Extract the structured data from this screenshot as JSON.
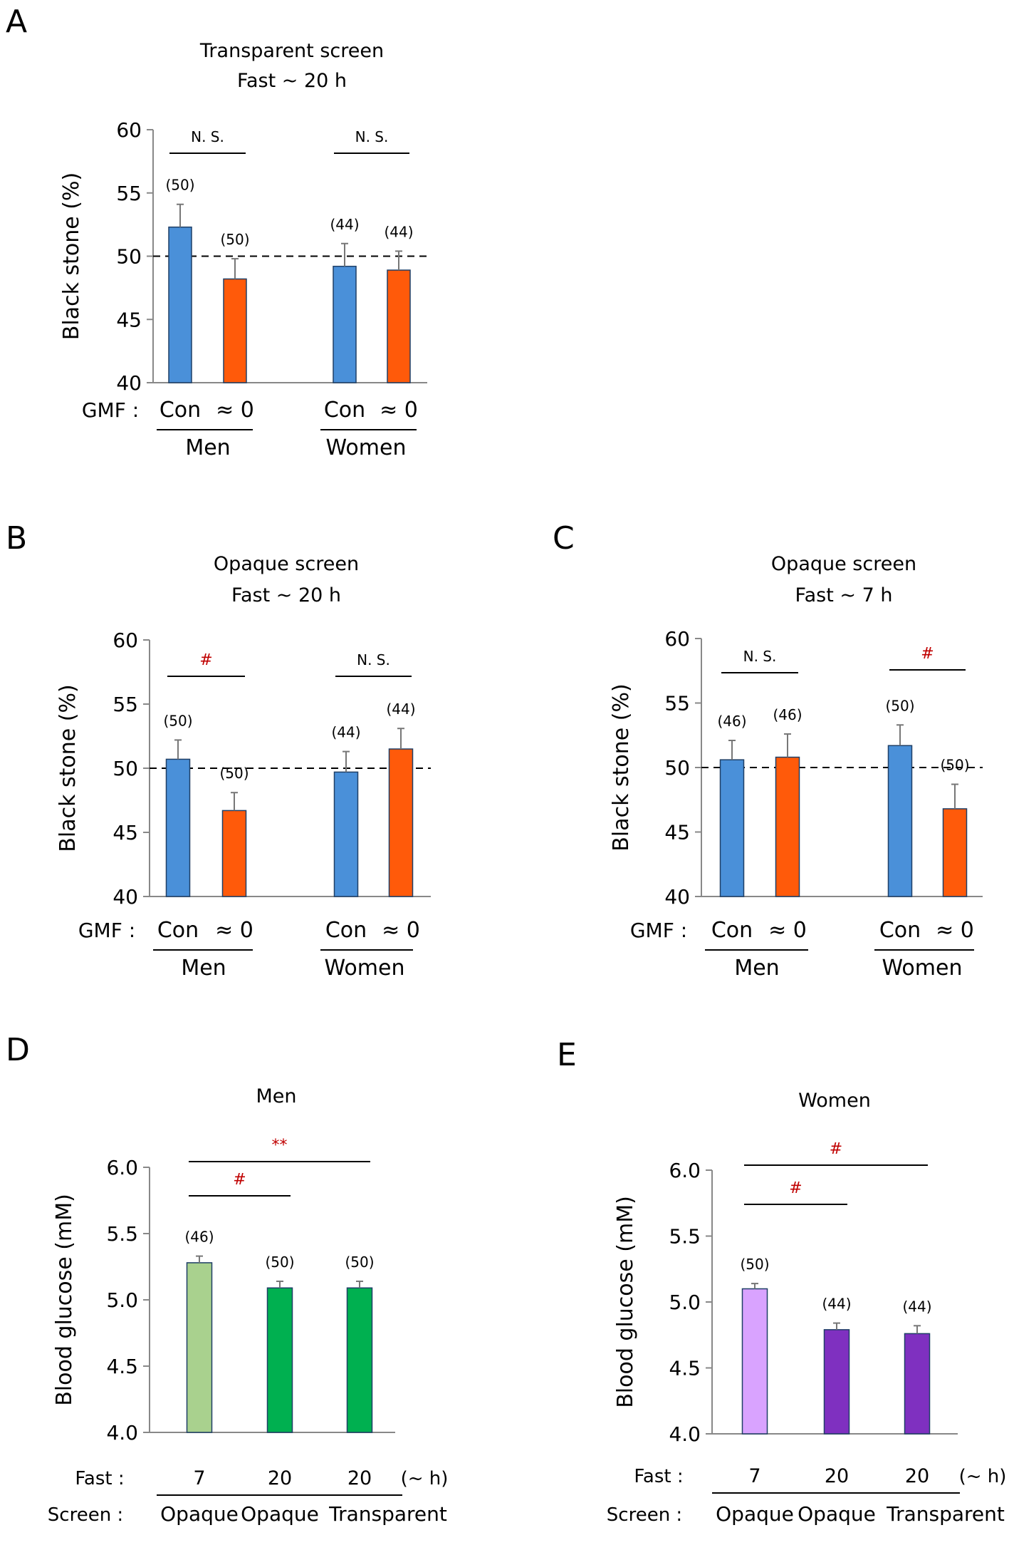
{
  "colors": {
    "con": "#4a90d9",
    "gmf0": "#ff5a0a",
    "men7": "#a9d18e",
    "menFast": "#00b050",
    "women7": "#d9a3ff",
    "womenFast": "#7f30c0",
    "sig": "#c00000"
  },
  "chart_data": [
    {
      "id": "A",
      "type": "bar",
      "panel_label": "A",
      "title_lines": [
        "Transparent screen",
        "Fast ~ 20 h"
      ],
      "ylabel": "Black stone (%)",
      "ylim": [
        40,
        60
      ],
      "yticks": [
        40,
        45,
        50,
        55,
        60
      ],
      "reference_line": 50,
      "row_label": "GMF :",
      "categories": [
        "Con",
        "≈ 0",
        "Con",
        "≈ 0"
      ],
      "groups": [
        "Men",
        "Women"
      ],
      "values": [
        52.3,
        48.2,
        49.2,
        48.9
      ],
      "errors": [
        1.8,
        1.6,
        1.8,
        1.5
      ],
      "n_labels": [
        "(50)",
        "(50)",
        "(44)",
        "(44)"
      ],
      "bar_colors": [
        "con",
        "gmf0",
        "con",
        "gmf0"
      ],
      "significance": [
        {
          "from": 0,
          "to": 1,
          "label": "N. S.",
          "y": 60,
          "red": false
        },
        {
          "from": 2,
          "to": 3,
          "label": "N. S.",
          "y": 60,
          "red": false
        }
      ]
    },
    {
      "id": "B",
      "type": "bar",
      "panel_label": "B",
      "title_lines": [
        "Opaque screen",
        "Fast ~ 20 h"
      ],
      "ylabel": "Black stone (%)",
      "ylim": [
        40,
        60
      ],
      "yticks": [
        40,
        45,
        50,
        55,
        60
      ],
      "reference_line": 50,
      "row_label": "GMF :",
      "categories": [
        "Con",
        "≈ 0",
        "Con",
        "≈ 0"
      ],
      "groups": [
        "Men",
        "Women"
      ],
      "values": [
        50.7,
        46.7,
        49.7,
        51.5
      ],
      "errors": [
        1.5,
        1.4,
        1.6,
        1.6
      ],
      "n_labels": [
        "(50)",
        "(50)",
        "(44)",
        "(44)"
      ],
      "bar_colors": [
        "con",
        "gmf0",
        "con",
        "gmf0"
      ],
      "significance": [
        {
          "from": 0,
          "to": 1,
          "label": "#",
          "y": 60,
          "red": true
        },
        {
          "from": 2,
          "to": 3,
          "label": "N. S.",
          "y": 60,
          "red": false
        }
      ]
    },
    {
      "id": "C",
      "type": "bar",
      "panel_label": "C",
      "title_lines": [
        "Opaque screen",
        "Fast ~ 7 h"
      ],
      "ylabel": "Black stone (%)",
      "ylim": [
        40,
        60
      ],
      "yticks": [
        40,
        45,
        50,
        55,
        60
      ],
      "reference_line": 50,
      "row_label": "GMF :",
      "categories": [
        "Con",
        "≈ 0",
        "Con",
        "≈ 0"
      ],
      "groups": [
        "Men",
        "Women"
      ],
      "values": [
        50.6,
        50.8,
        51.7,
        46.8
      ],
      "errors": [
        1.5,
        1.8,
        1.6,
        1.9
      ],
      "n_labels": [
        "(46)",
        "(46)",
        "(50)",
        "(50)"
      ],
      "bar_colors": [
        "con",
        "gmf0",
        "con",
        "gmf0"
      ],
      "significance": [
        {
          "from": 0,
          "to": 1,
          "label": "N. S.",
          "y": 60,
          "red": false
        },
        {
          "from": 2,
          "to": 3,
          "label": "#",
          "y": 60,
          "red": true
        }
      ]
    },
    {
      "id": "D",
      "type": "bar",
      "panel_label": "D",
      "title_lines": [
        "Men"
      ],
      "ylabel": "Blood glucose (mM)",
      "ylim": [
        4.0,
        6.0
      ],
      "yticks": [
        4.0,
        4.5,
        5.0,
        5.5,
        6.0
      ],
      "row1_label": "Fast :",
      "row1_values": [
        "7",
        "20",
        "20"
      ],
      "row1_unit": "(~ h)",
      "row2_label": "Screen :",
      "row2_values": [
        "Opaque",
        "Opaque",
        "Transparent"
      ],
      "values": [
        5.28,
        5.09,
        5.09
      ],
      "errors": [
        0.05,
        0.05,
        0.05
      ],
      "n_labels": [
        "(46)",
        "(50)",
        "(50)"
      ],
      "bar_colors": [
        "men7",
        "menFast",
        "menFast"
      ],
      "significance": [
        {
          "from": 0,
          "to": 1,
          "label": "#",
          "y": 5.77,
          "red": true
        },
        {
          "from": 0,
          "to": 2,
          "label": "**",
          "y": 6.11,
          "red": true
        }
      ]
    },
    {
      "id": "E",
      "type": "bar",
      "panel_label": "E",
      "title_lines": [
        "Women"
      ],
      "ylabel": "Blood glucose (mM)",
      "ylim": [
        4.0,
        6.0
      ],
      "yticks": [
        4.0,
        4.5,
        5.0,
        5.5,
        6.0
      ],
      "row1_label": "Fast :",
      "row1_values": [
        "7",
        "20",
        "20"
      ],
      "row1_unit": "(~ h)",
      "row2_label": "Screen :",
      "row2_values": [
        "Opaque",
        "Opaque",
        "Transparent"
      ],
      "values": [
        5.1,
        4.79,
        4.76
      ],
      "errors": [
        0.04,
        0.05,
        0.06
      ],
      "n_labels": [
        "(50)",
        "(44)",
        "(44)"
      ],
      "bar_colors": [
        "women7",
        "womenFast",
        "womenFast"
      ],
      "significance": [
        {
          "from": 0,
          "to": 1,
          "label": "#",
          "y": 5.72,
          "red": true
        },
        {
          "from": 0,
          "to": 2,
          "label": "#",
          "y": 6.02,
          "red": true
        }
      ]
    }
  ]
}
